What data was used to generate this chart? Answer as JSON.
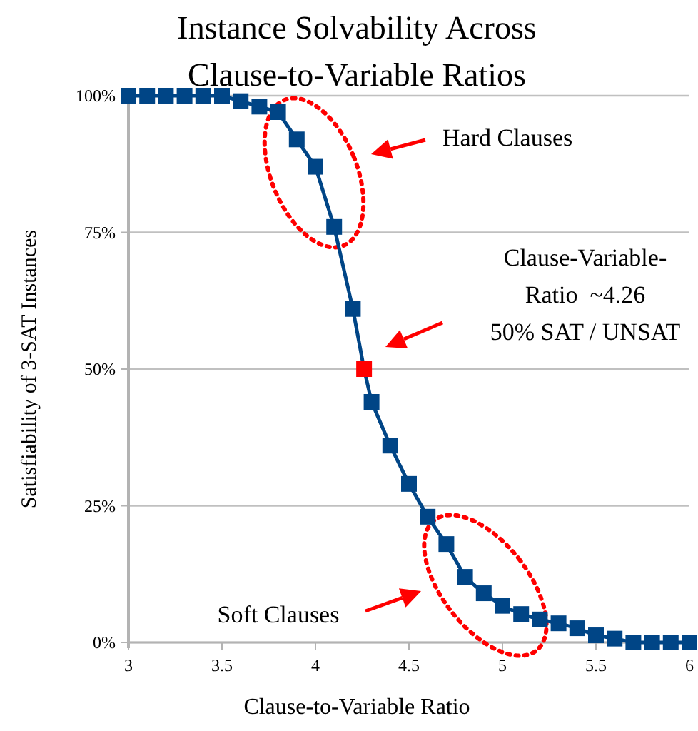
{
  "chart_data": {
    "type": "line",
    "title": "Instance Solvability Across\nClause-to-Variable Ratios",
    "xlabel": "Clause-to-Variable Ratio",
    "ylabel": "Satisfiability of 3-SAT Instances",
    "x": [
      3,
      3.1,
      3.2,
      3.3,
      3.4,
      3.5,
      3.6,
      3.7,
      3.8,
      3.9,
      4,
      4.1,
      4.2,
      4.26,
      4.3,
      4.4,
      4.5,
      4.6,
      4.7,
      4.8,
      4.9,
      5,
      5.1,
      5.2,
      5.3,
      5.4,
      5.5,
      5.6,
      5.7,
      5.8,
      5.9,
      6
    ],
    "series": [
      {
        "color": "#004586",
        "colors": [
          "#004586",
          "#004586",
          "#004586",
          "#004586",
          "#004586",
          "#004586",
          "#004586",
          "#004586",
          "#004586",
          "#004586",
          "#004586",
          "#004586",
          "#004586",
          "#ff0000",
          "#004586",
          "#004586",
          "#004586",
          "#004586",
          "#004586",
          "#004586",
          "#004586",
          "#004586",
          "#004586",
          "#004586",
          "#004586",
          "#004586",
          "#004586",
          "#004586",
          "#004586",
          "#004586",
          "#004586",
          "#004586"
        ],
        "values": [
          100,
          100,
          100,
          100,
          100,
          100,
          99,
          98,
          97,
          92,
          87,
          76,
          61,
          50,
          44,
          36,
          29,
          23,
          18,
          12,
          9,
          6.7,
          5.2,
          4.2,
          3.5,
          2.6,
          1.3,
          0.7,
          0,
          0,
          0,
          0
        ]
      }
    ],
    "xlim": [
      3,
      6
    ],
    "xticks": [
      3,
      3.5,
      4,
      4.5,
      5,
      5.5,
      6
    ],
    "ylim": [
      0,
      100
    ],
    "yticks": [
      {
        "value": 0,
        "label": "0%"
      },
      {
        "value": 25,
        "label": "25%"
      },
      {
        "value": 50,
        "label": "50%"
      },
      {
        "value": 75,
        "label": "75%"
      },
      {
        "value": 100,
        "label": "100%"
      }
    ],
    "grid": "y",
    "marker": "square",
    "line_style": "solid",
    "annotations": [
      "Hard Clauses",
      "Clause-Variable-\nRatio  ~4.26\n50% SAT / UNSAT",
      "Soft Clauses"
    ]
  }
}
